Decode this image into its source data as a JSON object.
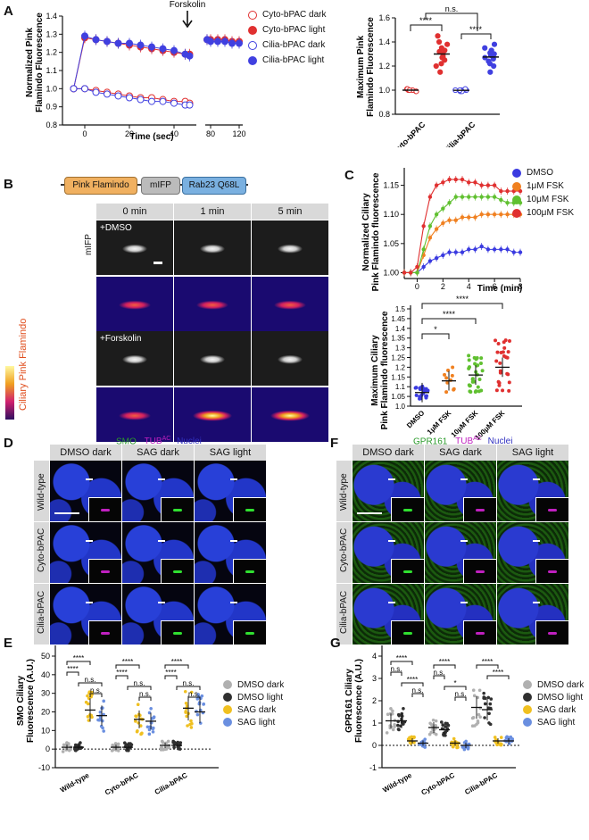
{
  "panels": {
    "A": {
      "label": "A",
      "annotation": "Forskolin",
      "ylabel_line1": "Normalized Pink",
      "ylabel_line2": "Flamindo Fluorescence",
      "xlabel": "Time (sec)",
      "legend": [
        {
          "label": "Cyto-bPAC dark",
          "color": "#e03030",
          "filled": false
        },
        {
          "label": "Cyto-bPAC light",
          "color": "#e03030",
          "filled": true
        },
        {
          "label": "Cilia-bPAC dark",
          "color": "#4040e0",
          "filled": false
        },
        {
          "label": "Cilia-bPAC light",
          "color": "#4040e0",
          "filled": true
        }
      ],
      "bar_ylabel_line1": "Maximum Pink",
      "bar_ylabel_line2": "Flamindo Fluorescence",
      "sig": [
        "****",
        "n.s.",
        "****"
      ]
    },
    "B": {
      "label": "B",
      "construct": [
        "Pink Flamindo",
        "mIFP",
        "Rab23 Q68L"
      ],
      "columns": [
        "0 min",
        "1 min",
        "5 min"
      ],
      "treatments": [
        "+DMSO",
        "+Forskolin"
      ],
      "row_label": "mIFP",
      "side_label": "Ciliary Pink Flamindo"
    },
    "C": {
      "label": "C",
      "ylabel_line1": "Normalized Ciliary",
      "ylabel_line2": "Pink Flamindo fluorescence",
      "xlabel": "Time (min)",
      "legend": [
        {
          "label": "DMSO",
          "color": "#3a3ae0"
        },
        {
          "label": "1μM FSK",
          "color": "#f08020"
        },
        {
          "label": "10μM FSK",
          "color": "#60c030"
        },
        {
          "label": "100μM FSK",
          "color": "#e03030"
        }
      ],
      "bar_ylabel_line1": "Maximum Ciliary",
      "bar_ylabel_line2": "Pink Flamindo fluorescence",
      "sig": [
        "*",
        "****",
        "****"
      ]
    },
    "D": {
      "label": "D",
      "stain": [
        "SMO",
        "TUB",
        "AC",
        "Nuclei"
      ],
      "columns": [
        "DMSO dark",
        "SAG dark",
        "SAG light"
      ],
      "rows": [
        "Wild-type",
        "Cyto-bPAC",
        "Cilia-bPAC"
      ]
    },
    "E": {
      "label": "E",
      "ylabel_line1": "SMO Ciliary",
      "ylabel_line2": "Fluorescence (A.U.)",
      "legend": [
        {
          "label": "DMSO dark",
          "color": "#b0b0b0"
        },
        {
          "label": "DMSO light",
          "color": "#303030"
        },
        {
          "label": "SAG dark",
          "color": "#f0c020"
        },
        {
          "label": "SAG light",
          "color": "#6a8fe0"
        }
      ],
      "groups": [
        "Wild-type",
        "Cyto-bPAC",
        "Cilia-bPAC"
      ]
    },
    "F": {
      "label": "F",
      "stain": [
        "GPR161",
        "TUB",
        "AC",
        "Nuclei"
      ],
      "columns": [
        "DMSO dark",
        "SAG dark",
        "SAG light"
      ],
      "rows": [
        "Wild-type",
        "Cyto-bPAC",
        "Cilia-bPAC"
      ]
    },
    "G": {
      "label": "G",
      "ylabel_line1": "GPR161 Ciliary",
      "ylabel_line2": "Fluorescence (A.U.)",
      "legend": [
        {
          "label": "DMSO dark",
          "color": "#b0b0b0"
        },
        {
          "label": "DMSO light",
          "color": "#303030"
        },
        {
          "label": "SAG dark",
          "color": "#f0c020"
        },
        {
          "label": "SAG light",
          "color": "#6a8fe0"
        }
      ],
      "groups": [
        "Wild-type",
        "Cyto-bPAC",
        "Cilia-bPAC"
      ]
    }
  },
  "chart_data": [
    {
      "id": "A-line",
      "type": "line",
      "x": [
        -5,
        0,
        5,
        10,
        15,
        20,
        25,
        30,
        35,
        40,
        45,
        47
      ],
      "x_after_break": [
        75,
        80,
        90,
        100,
        110,
        120
      ],
      "xticks": [
        "0",
        "20",
        "40",
        "80",
        "120"
      ],
      "ylim": [
        0.8,
        1.4
      ],
      "yticks": [
        "0.8",
        "0.9",
        "1.0",
        "1.1",
        "1.2",
        "1.3",
        "1.4"
      ],
      "series": [
        {
          "name": "Cyto-bPAC light",
          "values": [
            1.0,
            1.28,
            1.27,
            1.26,
            1.25,
            1.24,
            1.23,
            1.22,
            1.21,
            1.2,
            1.19,
            1.19
          ],
          "after_break": [
            1.27,
            1.27,
            1.27,
            1.27,
            1.26,
            1.26
          ]
        },
        {
          "name": "Cilia-bPAC light",
          "values": [
            1.0,
            1.29,
            1.27,
            1.26,
            1.25,
            1.25,
            1.24,
            1.23,
            1.22,
            1.21,
            1.19,
            1.18
          ],
          "after_break": [
            1.27,
            1.26,
            1.26,
            1.26,
            1.25,
            1.25
          ]
        },
        {
          "name": "Cyto-bPAC dark",
          "values": [
            1.0,
            1.0,
            0.99,
            0.98,
            0.97,
            0.96,
            0.95,
            0.95,
            0.94,
            0.93,
            0.93,
            0.92
          ]
        },
        {
          "name": "Cilia-bPAC dark",
          "values": [
            1.0,
            1.0,
            0.98,
            0.97,
            0.96,
            0.95,
            0.94,
            0.93,
            0.93,
            0.92,
            0.91,
            0.91
          ]
        }
      ]
    },
    {
      "id": "A-bar",
      "type": "scatter",
      "categories": [
        "Cyto-bPAC",
        "Cilia-bPAC"
      ],
      "ylim": [
        0.8,
        1.6
      ],
      "yticks": [
        "0.8",
        "1.0",
        "1.2",
        "1.4",
        "1.6"
      ],
      "series": [
        {
          "name": "Cyto-bPAC dark",
          "values": [
            1.0,
            1.01,
            0.99,
            1.0,
            1.0,
            1.01,
            0.99,
            1.0
          ]
        },
        {
          "name": "Cyto-bPAC light",
          "values": [
            1.15,
            1.2,
            1.25,
            1.28,
            1.3,
            1.32,
            1.35,
            1.4,
            1.45,
            1.22,
            1.27,
            1.33,
            1.38
          ]
        },
        {
          "name": "Cilia-bPAC dark",
          "values": [
            0.99,
            1.0,
            1.0,
            1.01,
            0.99,
            1.0,
            1.0
          ]
        },
        {
          "name": "Cilia-bPAC light",
          "values": [
            1.15,
            1.2,
            1.24,
            1.27,
            1.29,
            1.31,
            1.33,
            1.35,
            1.38,
            1.22,
            1.26,
            1.3
          ]
        }
      ]
    },
    {
      "id": "C-line",
      "type": "line",
      "x": [
        -1,
        -0.5,
        0,
        0.5,
        1,
        1.5,
        2,
        2.5,
        3,
        3.5,
        4,
        4.5,
        5,
        5.5,
        6,
        6.5,
        7,
        7.5,
        8
      ],
      "xticks": [
        "0",
        "2",
        "4",
        "6",
        "8"
      ],
      "ylim": [
        0.99,
        1.18
      ],
      "yticks": [
        "1.00",
        "1.05",
        "1.10",
        "1.15"
      ],
      "series": [
        {
          "name": "DMSO",
          "values": [
            1.0,
            1.0,
            1.0,
            1.01,
            1.02,
            1.025,
            1.03,
            1.035,
            1.035,
            1.035,
            1.04,
            1.04,
            1.045,
            1.04,
            1.04,
            1.04,
            1.04,
            1.035,
            1.035
          ]
        },
        {
          "name": "1μM FSK",
          "values": [
            1.0,
            1.0,
            1.0,
            1.03,
            1.06,
            1.075,
            1.085,
            1.09,
            1.09,
            1.095,
            1.095,
            1.095,
            1.1,
            1.1,
            1.1,
            1.1,
            1.1,
            1.1,
            1.1
          ]
        },
        {
          "name": "10μM FSK",
          "values": [
            1.0,
            1.0,
            1.0,
            1.04,
            1.08,
            1.1,
            1.11,
            1.12,
            1.13,
            1.13,
            1.13,
            1.13,
            1.13,
            1.13,
            1.13,
            1.125,
            1.12,
            1.12,
            1.12
          ]
        },
        {
          "name": "100μM FSK",
          "values": [
            1.0,
            1.0,
            1.01,
            1.08,
            1.13,
            1.15,
            1.155,
            1.16,
            1.16,
            1.16,
            1.155,
            1.155,
            1.15,
            1.15,
            1.15,
            1.14,
            1.14,
            1.14,
            1.14
          ]
        }
      ]
    },
    {
      "id": "C-bar",
      "type": "scatter",
      "categories": [
        "DMSO",
        "1μM FSK",
        "10μM FSK",
        "100μM FSK"
      ],
      "ylim": [
        1.0,
        1.5
      ],
      "yticks": [
        "1.0",
        "1.05",
        "1.1",
        "1.15",
        "1.2",
        "1.25",
        "1.3",
        "1.35",
        "1.4",
        "1.45",
        "1.5"
      ],
      "means": [
        1.07,
        1.13,
        1.16,
        1.2
      ]
    },
    {
      "id": "E",
      "type": "scatter",
      "categories": [
        "Wild-type",
        "Cyto-bPAC",
        "Cilia-bPAC"
      ],
      "ylim": [
        -10,
        50
      ],
      "yticks": [
        "-10",
        "0",
        "10",
        "20",
        "30",
        "40",
        "50"
      ],
      "series": [
        {
          "name": "DMSO dark",
          "means": [
            1,
            1,
            2
          ]
        },
        {
          "name": "DMSO light",
          "means": [
            1,
            1,
            2
          ]
        },
        {
          "name": "SAG dark",
          "means": [
            21,
            16,
            22
          ]
        },
        {
          "name": "SAG light",
          "means": [
            18,
            15,
            20
          ]
        }
      ],
      "sig": [
        "****",
        "****",
        "n.s.",
        "n.s.",
        "****",
        "****",
        "n.s.",
        "n.s.",
        "****",
        "****",
        "n.s.",
        "n.s."
      ]
    },
    {
      "id": "G",
      "type": "scatter",
      "categories": [
        "Wild-type",
        "Cyto-bPAC",
        "Cilia-bPAC"
      ],
      "ylim": [
        -1,
        4
      ],
      "yticks": [
        "-1",
        "0",
        "1",
        "2",
        "3",
        "4"
      ],
      "series": [
        {
          "name": "DMSO dark",
          "means": [
            1.1,
            0.8,
            1.7
          ]
        },
        {
          "name": "DMSO light",
          "means": [
            1.1,
            0.7,
            1.6
          ]
        },
        {
          "name": "SAG dark",
          "means": [
            0.2,
            0.1,
            0.2
          ]
        },
        {
          "name": "SAG light",
          "means": [
            0.1,
            0.0,
            0.2
          ]
        }
      ],
      "sig": [
        "****",
        "n.s.",
        "****",
        "n.s.",
        "****",
        "n.s.",
        "*",
        "n.s.",
        "****",
        "****"
      ]
    }
  ]
}
